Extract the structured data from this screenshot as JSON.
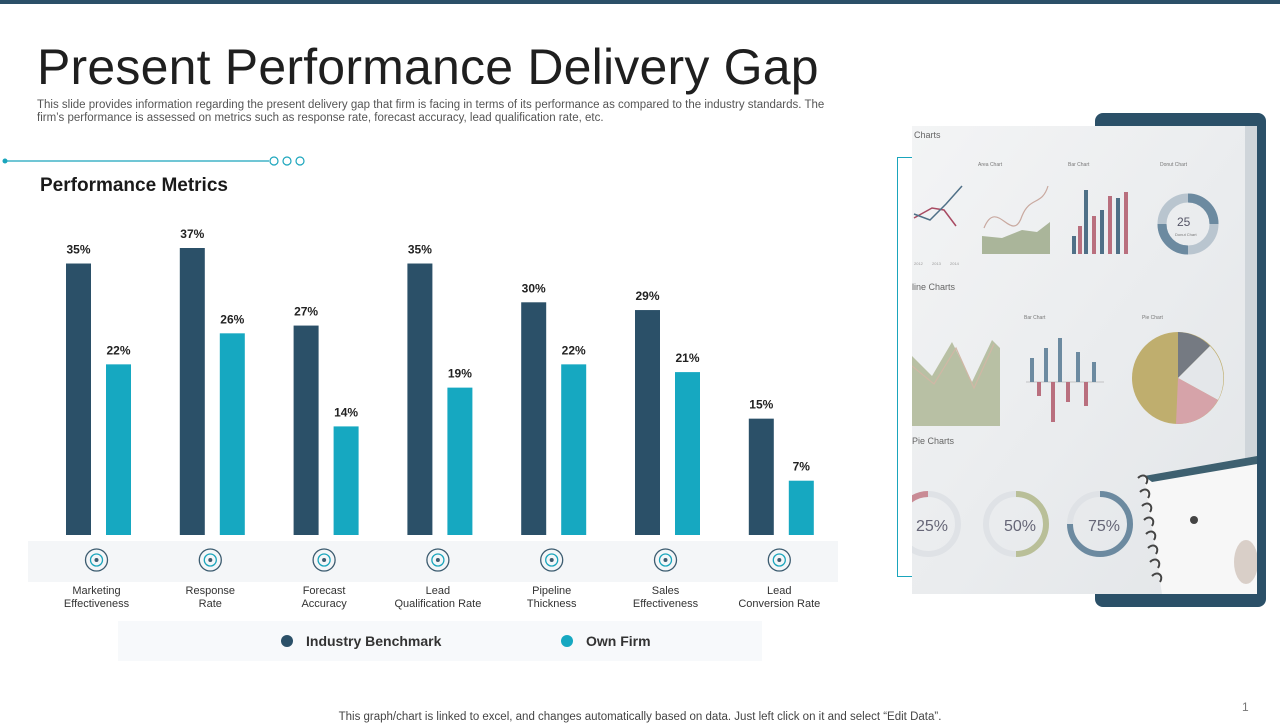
{
  "slide": {
    "title": "Present Performance Delivery Gap",
    "subtitle": "This slide provides information regarding the present delivery gap that firm is facing in terms of its performance as compared to the industry standards. The firm’s performance is assessed on metrics such as response rate, forecast accuracy, lead qualification rate, etc.",
    "section_heading": "Performance Metrics",
    "footer_note": "This graph/chart is linked to excel, and changes automatically based on data. Just left click on it and select “Edit Data”.",
    "page_number": "1"
  },
  "colors": {
    "industry_benchmark": "#2b5068",
    "own_firm": "#16a8c1",
    "accent": "#1aa5bc"
  },
  "chart_data": {
    "type": "bar",
    "title": "Performance Metrics",
    "categories": [
      [
        "Marketing",
        "Effectiveness"
      ],
      [
        "Response",
        "Rate"
      ],
      [
        "Forecast",
        "Accuracy"
      ],
      [
        "Lead",
        "Qualification Rate"
      ],
      [
        "Pipeline",
        "Thickness"
      ],
      [
        "Sales",
        "Effectiveness"
      ],
      [
        "Lead",
        "Conversion Rate"
      ]
    ],
    "category_icons": [
      "target-icon",
      "rating-stars-icon",
      "forecast-icon",
      "monitor-dashboard-icon",
      "pipeline-icon",
      "gear-icon",
      "funnel-icon"
    ],
    "series": [
      {
        "name": "Industry Benchmark",
        "values": [
          35,
          37,
          27,
          35,
          30,
          29,
          15
        ],
        "labels": [
          "35%",
          "37%",
          "27%",
          "35%",
          "30%",
          "29%",
          "15%"
        ]
      },
      {
        "name": "Own Firm",
        "values": [
          22,
          26,
          14,
          19,
          22,
          21,
          7
        ],
        "labels": [
          "22%",
          "26%",
          "14%",
          "19%",
          "22%",
          "21%",
          "7%"
        ]
      }
    ],
    "unit": "%",
    "ylim": [
      0,
      37
    ],
    "grid": false,
    "legend_position": "bottom"
  },
  "legend": [
    {
      "label": "Industry Benchmark",
      "color": "#2b5068"
    },
    {
      "label": "Own Firm",
      "color": "#16a8c1"
    }
  ],
  "photo": {
    "section_labels": [
      "Charts",
      "Area Chart",
      "Bar Chart",
      "Donut Chart",
      "line Charts",
      "Bar Chart",
      "Pie Chart",
      "Pie Charts"
    ],
    "donut_value": "25",
    "donut_sub": "Donut Chart",
    "gauges": [
      "25",
      "50",
      "75"
    ],
    "gauge_unit": "%",
    "year_ticks": [
      "2012",
      "2013",
      "2014"
    ]
  }
}
